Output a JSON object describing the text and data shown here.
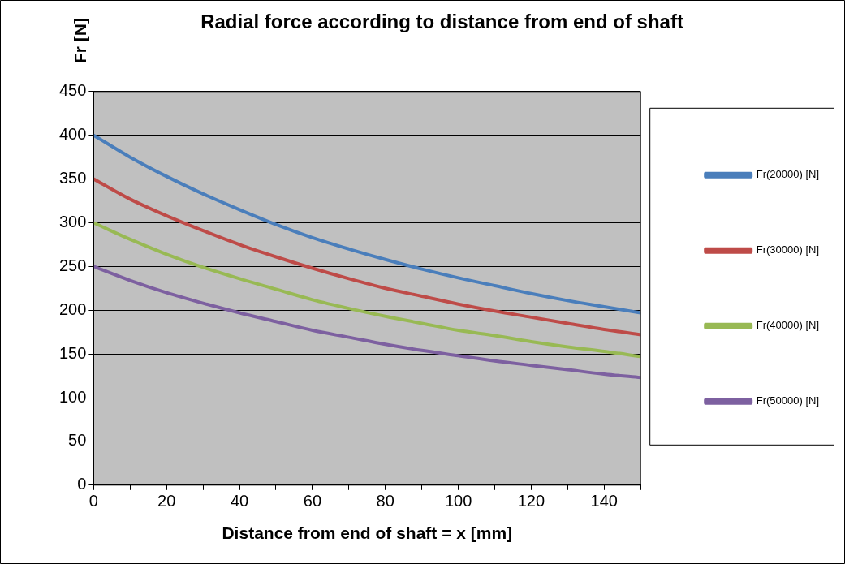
{
  "chart_data": {
    "type": "line",
    "title": "Radial force according to distance from end of shaft",
    "xlabel": "Distance from end of shaft = x [mm]",
    "ylabel": "Fr [N]",
    "x": [
      0,
      10,
      20,
      30,
      40,
      50,
      60,
      70,
      80,
      90,
      100,
      110,
      120,
      130,
      140,
      150
    ],
    "series": [
      {
        "name": "Fr(20000) [N]",
        "color": "#4a7ebb",
        "values": [
          400,
          375,
          353,
          333,
          315,
          298,
          283,
          270,
          258,
          247,
          237,
          228,
          219,
          211,
          204,
          197
        ]
      },
      {
        "name": "Fr(30000) [N]",
        "color": "#be4b48",
        "values": [
          350,
          327,
          308,
          291,
          275,
          261,
          248,
          236,
          225,
          216,
          207,
          199,
          192,
          185,
          178,
          172
        ]
      },
      {
        "name": "Fr(40000) [N]",
        "color": "#98b954",
        "values": [
          300,
          281,
          264,
          249,
          236,
          224,
          212,
          202,
          193,
          185,
          177,
          171,
          164,
          158,
          153,
          147
        ]
      },
      {
        "name": "Fr(50000) [N]",
        "color": "#7d60a0",
        "values": [
          250,
          234,
          220,
          208,
          197,
          187,
          177,
          169,
          161,
          154,
          148,
          142,
          137,
          132,
          127,
          123
        ]
      }
    ],
    "xlim": [
      0,
      150
    ],
    "xticks": [
      0,
      {
        "value": 10,
        "label": null
      },
      20,
      {
        "value": 30,
        "label": null
      },
      40,
      {
        "value": 50,
        "label": null
      },
      60,
      {
        "value": 70,
        "label": null
      },
      80,
      {
        "value": 90,
        "label": null
      },
      100,
      {
        "value": 110,
        "label": null
      },
      120,
      {
        "value": 130,
        "label": null
      },
      140,
      {
        "value": 150,
        "label": null
      }
    ],
    "ylim": [
      0,
      450
    ],
    "yticks": [
      0,
      50,
      100,
      150,
      200,
      250,
      300,
      350,
      400,
      450
    ],
    "grid": "y",
    "legend": "right",
    "marker": "none",
    "line_style": "solid"
  }
}
